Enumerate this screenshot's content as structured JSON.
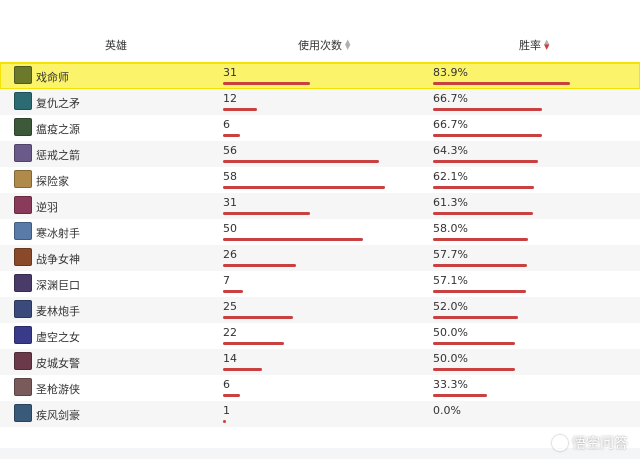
{
  "table": {
    "headers": {
      "hero": "英雄",
      "usage": "使用次数",
      "winrate": "胜率"
    },
    "highlighted_row": 0,
    "rows": [
      {
        "name": "戏命师",
        "usage": "31",
        "winrate": "83.9%",
        "usage_value": 31,
        "winrate_value": 83.9,
        "avatar_color": "#6b7a2a"
      },
      {
        "name": "复仇之矛",
        "usage": "12",
        "winrate": "66.7%",
        "usage_value": 12,
        "winrate_value": 66.7,
        "avatar_color": "#2d6b72"
      },
      {
        "name": "瘟疫之源",
        "usage": "6",
        "winrate": "66.7%",
        "usage_value": 6,
        "winrate_value": 66.7,
        "avatar_color": "#3c5a3a"
      },
      {
        "name": "惩戒之箭",
        "usage": "56",
        "winrate": "64.3%",
        "usage_value": 56,
        "winrate_value": 64.3,
        "avatar_color": "#6a5a8a"
      },
      {
        "name": "探险家",
        "usage": "58",
        "winrate": "62.1%",
        "usage_value": 58,
        "winrate_value": 62.1,
        "avatar_color": "#b08a4a"
      },
      {
        "name": "逆羽",
        "usage": "31",
        "winrate": "61.3%",
        "usage_value": 31,
        "winrate_value": 61.3,
        "avatar_color": "#8a3a5a"
      },
      {
        "name": "寒冰射手",
        "usage": "50",
        "winrate": "58.0%",
        "usage_value": 50,
        "winrate_value": 58.0,
        "avatar_color": "#5a7aa8"
      },
      {
        "name": "战争女神",
        "usage": "26",
        "winrate": "57.7%",
        "usage_value": 26,
        "winrate_value": 57.7,
        "avatar_color": "#8a4a2a"
      },
      {
        "name": "深渊巨口",
        "usage": "7",
        "winrate": "57.1%",
        "usage_value": 7,
        "winrate_value": 57.1,
        "avatar_color": "#4a3a6a"
      },
      {
        "name": "麦林炮手",
        "usage": "25",
        "winrate": "52.0%",
        "usage_value": 25,
        "winrate_value": 52.0,
        "avatar_color": "#3a4a7a"
      },
      {
        "name": "虚空之女",
        "usage": "22",
        "winrate": "50.0%",
        "usage_value": 22,
        "winrate_value": 50.0,
        "avatar_color": "#3a3a8a"
      },
      {
        "name": "皮城女警",
        "usage": "14",
        "winrate": "50.0%",
        "usage_value": 14,
        "winrate_value": 50.0,
        "avatar_color": "#6a3a4a"
      },
      {
        "name": "圣枪游侠",
        "usage": "6",
        "winrate": "33.3%",
        "usage_value": 6,
        "winrate_value": 33.3,
        "avatar_color": "#7a5a5a"
      },
      {
        "name": "疾风剑豪",
        "usage": "1",
        "winrate": "0.0%",
        "usage_value": 1,
        "winrate_value": 0.0,
        "avatar_color": "#3a5a7a"
      }
    ]
  },
  "watermark": {
    "text": "悟空问答",
    "icon": "wukong-logo-icon"
  }
}
